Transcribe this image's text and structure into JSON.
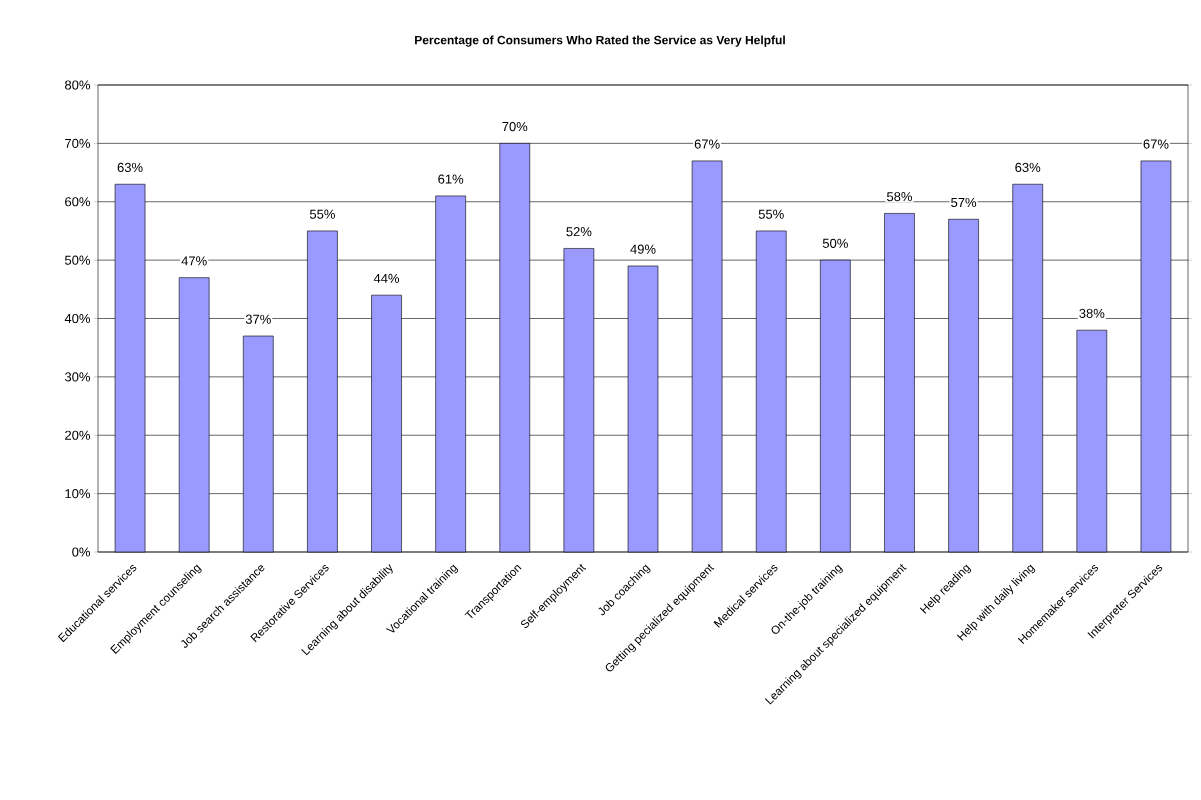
{
  "chart_data": {
    "type": "bar",
    "title": "Percentage of Consumers Who Rated the Service as Very Helpful",
    "categories": [
      "Educational services",
      "Employment counseling",
      "Job search assistance",
      "Restorative Services",
      "Learning about disability",
      "Vocational training",
      "Transportation",
      "Self-employment",
      "Job coaching",
      "Getting pecialized equipment",
      "Medical services",
      "On-the-job training",
      "Learning about specialized equipment",
      "Help reading",
      "Help with daily living",
      "Homemaker services",
      "Interpreter Services"
    ],
    "values": [
      63,
      47,
      37,
      55,
      44,
      61,
      70,
      52,
      49,
      67,
      55,
      50,
      58,
      57,
      63,
      38,
      67
    ],
    "value_labels": [
      "63%",
      "47%",
      "37%",
      "55%",
      "44%",
      "61%",
      "70%",
      "52%",
      "49%",
      "67%",
      "55%",
      "50%",
      "58%",
      "57%",
      "63%",
      "38%",
      "67%"
    ],
    "color": "#9999ff",
    "ylim": [
      0,
      80
    ],
    "yticks": [
      {
        "value": 0,
        "label": "0%"
      },
      {
        "value": 10,
        "label": "10%"
      },
      {
        "value": 20,
        "label": "20%"
      },
      {
        "value": 30,
        "label": "30%"
      },
      {
        "value": 40,
        "label": "40%"
      },
      {
        "value": 50,
        "label": "50%"
      },
      {
        "value": 60,
        "label": "60%"
      },
      {
        "value": 70,
        "label": "70%"
      },
      {
        "value": 80,
        "label": "80%"
      }
    ],
    "grid": "y"
  }
}
